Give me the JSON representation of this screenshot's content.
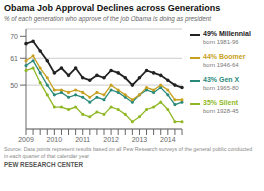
{
  "chart_data": {
    "type": "line",
    "title": "Obama Job Approval Declines across Generations",
    "subtitle": "% of each generation who approve of the job Obama is doing as president",
    "source": "Source: Data points represent results based on all Pew Research surveys of the general public conducted in each quarter of that calendar year",
    "credit": "PEW RESEARCH CENTER",
    "categories": [
      "2009",
      null,
      null,
      null,
      "2010",
      null,
      null,
      null,
      "2011",
      null,
      null,
      null,
      "2012",
      null,
      null,
      null,
      "2013",
      null,
      null,
      null,
      "2014",
      null,
      null
    ],
    "series": [
      {
        "name": "49% Millennial",
        "sublabel": "born 1981-96",
        "color": "#222222",
        "values": [
          67,
          68,
          64,
          60,
          55,
          57,
          54,
          57,
          53,
          52,
          54,
          53,
          56,
          55,
          53,
          50,
          53,
          56,
          55,
          54,
          52,
          50,
          49
        ]
      },
      {
        "name": "44% Boomer",
        "sublabel": "born 1946-64",
        "color": "#c8a020",
        "values": [
          60,
          62,
          57,
          53,
          48,
          48,
          47,
          48,
          47,
          45,
          47,
          46,
          50,
          48,
          46,
          44,
          46,
          49,
          48,
          50,
          48,
          44,
          44
        ]
      },
      {
        "name": "43% Gen X",
        "sublabel": "born 1965-80",
        "color": "#2a8a7a",
        "values": [
          58,
          60,
          55,
          50,
          46,
          47,
          45,
          46,
          45,
          43,
          45,
          44,
          48,
          47,
          45,
          43,
          46,
          48,
          47,
          49,
          46,
          42,
          43
        ]
      },
      {
        "name": "35% Silent",
        "sublabel": "born 1928-45",
        "color": "#90b825",
        "values": [
          56,
          57,
          51,
          46,
          41,
          41,
          40,
          41,
          38,
          37,
          39,
          38,
          41,
          40,
          38,
          35,
          37,
          40,
          41,
          43,
          40,
          35,
          35
        ]
      }
    ],
    "ylim": [
      32,
      73
    ],
    "yticks": [
      70,
      61,
      50
    ],
    "grid": true,
    "marker": "circle"
  }
}
